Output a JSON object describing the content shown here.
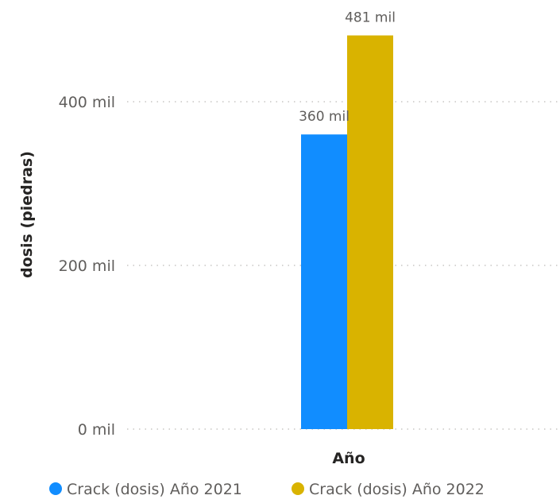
{
  "chart_data": {
    "type": "bar",
    "categories": [
      "Año"
    ],
    "series": [
      {
        "name": "Crack (dosis) Año 2021",
        "values": [
          360000
        ],
        "label": "360 mil",
        "color": "#118dff"
      },
      {
        "name": "Crack (dosis) Año 2022",
        "values": [
          481000
        ],
        "label": "481 mil",
        "color": "#d9b300"
      }
    ],
    "xlabel": "Año",
    "ylabel": "dosis (piedras)",
    "ylim": [
      0,
      500000
    ],
    "yticks": [
      {
        "value": 0,
        "label": "0 mil"
      },
      {
        "value": 200000,
        "label": "200 mil"
      },
      {
        "value": 400000,
        "label": "400 mil"
      }
    ],
    "grid": true,
    "legend_position": "bottom"
  }
}
